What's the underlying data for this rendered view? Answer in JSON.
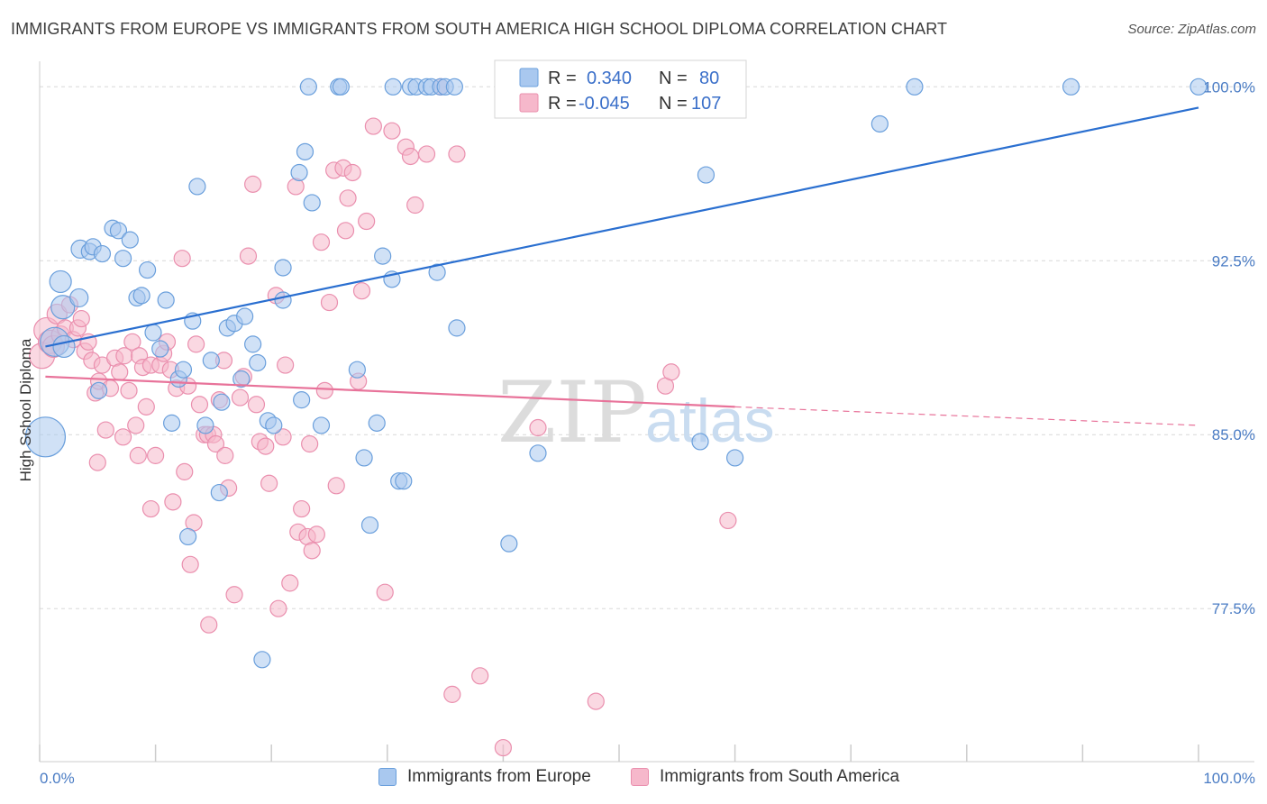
{
  "title": "IMMIGRANTS FROM EUROPE VS IMMIGRANTS FROM SOUTH AMERICA HIGH SCHOOL DIPLOMA CORRELATION CHART",
  "source": "Source: ZipAtlas.com",
  "watermark": {
    "zip": "ZIP",
    "atlas": "atlas"
  },
  "colors": {
    "blue_fill": "#a9c8ef",
    "blue_stroke": "#6a9fdc",
    "blue_line": "#2a6fd0",
    "pink_fill": "#f6b8cb",
    "pink_stroke": "#ea8fae",
    "pink_line": "#e8739a",
    "axis_text": "#4a7cc4",
    "grid": "#d8d8d8"
  },
  "legend": {
    "rows": [
      {
        "r_label": "R =",
        "r_value": "0.340",
        "n_label": "N =",
        "n_value": "80"
      },
      {
        "r_label": "R =",
        "r_value": "-0.045",
        "n_label": "N =",
        "n_value": "107"
      }
    ]
  },
  "chart_data": {
    "type": "scatter",
    "ylabel": "High School Diploma",
    "xlim": [
      0,
      100
    ],
    "ylim": [
      70.9,
      101.1
    ],
    "x_tick_labels": [
      "0.0%",
      "100.0%"
    ],
    "y_ticks": [
      77.5,
      85.0,
      92.5,
      100.0
    ],
    "y_tick_labels": [
      "77.5%",
      "85.0%",
      "92.5%",
      "100.0%"
    ],
    "grid": true,
    "series": [
      {
        "name": "Immigrants from Europe",
        "color": "blue",
        "trend": {
          "x": [
            0.5,
            100
          ],
          "y": [
            88.8,
            99.1
          ]
        },
        "points": [
          [
            0.5,
            84.9,
            22
          ],
          [
            1.3,
            89.0,
            16
          ],
          [
            1.8,
            91.6,
            12
          ],
          [
            2.0,
            90.5,
            13
          ],
          [
            2.1,
            88.8,
            12
          ],
          [
            3.5,
            93.0,
            10
          ],
          [
            3.4,
            90.9,
            10
          ],
          [
            4.3,
            92.9,
            9
          ],
          [
            4.6,
            93.1,
            9
          ],
          [
            5.4,
            92.8,
            9
          ],
          [
            5.1,
            86.9,
            9
          ],
          [
            6.3,
            93.9,
            9
          ],
          [
            6.8,
            93.8,
            9
          ],
          [
            7.2,
            92.6,
            9
          ],
          [
            7.8,
            93.4,
            9
          ],
          [
            8.4,
            90.9,
            9
          ],
          [
            8.8,
            91.0,
            9
          ],
          [
            9.3,
            92.1,
            9
          ],
          [
            9.8,
            89.4,
            9
          ],
          [
            10.4,
            88.7,
            9
          ],
          [
            10.9,
            90.8,
            9
          ],
          [
            11.4,
            85.5,
            9
          ],
          [
            12.0,
            87.4,
            9
          ],
          [
            12.4,
            87.8,
            9
          ],
          [
            12.8,
            80.6,
            9
          ],
          [
            13.2,
            89.9,
            9
          ],
          [
            13.6,
            95.7,
            9
          ],
          [
            14.3,
            85.4,
            9
          ],
          [
            14.8,
            88.2,
            9
          ],
          [
            15.5,
            82.5,
            9
          ],
          [
            15.7,
            86.4,
            9
          ],
          [
            16.2,
            89.6,
            9
          ],
          [
            16.8,
            89.8,
            9
          ],
          [
            17.4,
            87.4,
            9
          ],
          [
            17.7,
            90.1,
            9
          ],
          [
            18.4,
            88.9,
            9
          ],
          [
            18.8,
            88.1,
            9
          ],
          [
            19.2,
            75.3,
            9
          ],
          [
            19.7,
            85.6,
            9
          ],
          [
            20.2,
            85.4,
            9
          ],
          [
            21.0,
            92.2,
            9
          ],
          [
            21.0,
            90.8,
            9
          ],
          [
            22.4,
            96.3,
            9
          ],
          [
            22.6,
            86.5,
            9
          ],
          [
            22.9,
            97.2,
            9
          ],
          [
            23.5,
            95.0,
            9
          ],
          [
            23.2,
            100.0,
            9
          ],
          [
            24.3,
            85.4,
            9
          ],
          [
            25.8,
            100.0,
            9
          ],
          [
            26.0,
            100.0,
            9
          ],
          [
            27.4,
            87.8,
            9
          ],
          [
            28.0,
            84.0,
            9
          ],
          [
            28.5,
            81.1,
            9
          ],
          [
            29.1,
            85.5,
            9
          ],
          [
            29.6,
            92.7,
            9
          ],
          [
            30.4,
            91.7,
            9
          ],
          [
            30.5,
            100.0,
            9
          ],
          [
            31.0,
            83.0,
            9
          ],
          [
            31.4,
            83.0,
            9
          ],
          [
            32.0,
            100.0,
            9
          ],
          [
            32.5,
            100.0,
            9
          ],
          [
            33.4,
            100.0,
            9
          ],
          [
            33.8,
            100.0,
            9
          ],
          [
            34.3,
            92.0,
            9
          ],
          [
            34.6,
            100.0,
            9
          ],
          [
            35.0,
            100.0,
            9
          ],
          [
            35.8,
            100.0,
            9
          ],
          [
            36.0,
            89.6,
            9
          ],
          [
            40.0,
            100.0,
            9
          ],
          [
            40.5,
            80.3,
            9
          ],
          [
            43.0,
            84.2,
            9
          ],
          [
            47.0,
            100.0,
            9
          ],
          [
            57.0,
            84.7,
            9
          ],
          [
            57.5,
            96.2,
            9
          ],
          [
            60.0,
            84.0,
            9
          ],
          [
            72.5,
            98.4,
            9
          ],
          [
            75.5,
            100.0,
            9
          ],
          [
            89.0,
            100.0,
            9
          ],
          [
            100.0,
            100.0,
            9
          ]
        ]
      },
      {
        "name": "Immigrants from South America",
        "color": "pink",
        "trend": {
          "x": [
            0.5,
            60.0
          ],
          "y": [
            87.5,
            86.2
          ]
        },
        "trend_dashed": {
          "x": [
            60.0,
            100
          ],
          "y": [
            86.2,
            85.4
          ]
        },
        "points": [
          [
            0.2,
            88.4,
            14
          ],
          [
            0.6,
            89.5,
            14
          ],
          [
            0.9,
            89.0,
            13
          ],
          [
            1.2,
            88.8,
            12
          ],
          [
            1.5,
            90.2,
            11
          ],
          [
            1.8,
            89.3,
            10
          ],
          [
            2.2,
            89.6,
            9
          ],
          [
            2.6,
            90.6,
            9
          ],
          [
            2.9,
            89.1,
            9
          ],
          [
            3.3,
            89.6,
            9
          ],
          [
            3.6,
            90.0,
            9
          ],
          [
            3.9,
            88.6,
            9
          ],
          [
            4.2,
            89.0,
            9
          ],
          [
            4.5,
            88.2,
            9
          ],
          [
            4.8,
            86.8,
            9
          ],
          [
            5.1,
            87.3,
            9
          ],
          [
            5.4,
            88.0,
            9
          ],
          [
            5.7,
            85.2,
            9
          ],
          [
            5.0,
            83.8,
            9
          ],
          [
            6.1,
            87.0,
            9
          ],
          [
            6.5,
            88.3,
            9
          ],
          [
            6.9,
            87.7,
            9
          ],
          [
            7.3,
            88.4,
            9
          ],
          [
            7.7,
            86.9,
            9
          ],
          [
            7.2,
            84.9,
            9
          ],
          [
            8.0,
            89.0,
            9
          ],
          [
            8.3,
            85.4,
            9
          ],
          [
            8.6,
            88.4,
            9
          ],
          [
            8.9,
            87.9,
            9
          ],
          [
            8.5,
            84.1,
            9
          ],
          [
            9.2,
            86.2,
            9
          ],
          [
            9.6,
            81.8,
            9
          ],
          [
            9.6,
            88.0,
            9
          ],
          [
            10.0,
            84.1,
            9
          ],
          [
            10.4,
            88.0,
            9
          ],
          [
            10.7,
            88.5,
            9
          ],
          [
            11.0,
            89.0,
            9
          ],
          [
            11.3,
            87.8,
            9
          ],
          [
            11.5,
            82.1,
            9
          ],
          [
            11.8,
            87.0,
            9
          ],
          [
            12.3,
            92.6,
            9
          ],
          [
            12.5,
            83.4,
            9
          ],
          [
            12.8,
            87.1,
            9
          ],
          [
            13.0,
            79.4,
            9
          ],
          [
            13.3,
            81.2,
            9
          ],
          [
            13.5,
            88.9,
            9
          ],
          [
            13.8,
            86.3,
            9
          ],
          [
            14.2,
            85.0,
            9
          ],
          [
            14.6,
            76.8,
            9
          ],
          [
            14.5,
            85.0,
            9
          ],
          [
            15.0,
            85.0,
            9
          ],
          [
            15.2,
            84.6,
            9
          ],
          [
            15.5,
            86.5,
            9
          ],
          [
            15.9,
            88.2,
            9
          ],
          [
            16.0,
            84.1,
            9
          ],
          [
            16.3,
            82.7,
            9
          ],
          [
            16.8,
            78.1,
            9
          ],
          [
            17.3,
            86.6,
            9
          ],
          [
            17.6,
            87.5,
            9
          ],
          [
            18.0,
            92.7,
            9
          ],
          [
            18.4,
            95.8,
            9
          ],
          [
            18.7,
            86.3,
            9
          ],
          [
            19.0,
            84.7,
            9
          ],
          [
            19.5,
            84.5,
            9
          ],
          [
            19.8,
            82.9,
            9
          ],
          [
            20.4,
            91.0,
            9
          ],
          [
            20.6,
            77.5,
            9
          ],
          [
            21.0,
            84.9,
            9
          ],
          [
            21.2,
            88.0,
            9
          ],
          [
            21.6,
            78.6,
            9
          ],
          [
            22.1,
            95.7,
            9
          ],
          [
            22.3,
            80.8,
            9
          ],
          [
            22.6,
            81.8,
            9
          ],
          [
            23.1,
            80.6,
            9
          ],
          [
            23.3,
            84.6,
            9
          ],
          [
            23.5,
            80.0,
            9
          ],
          [
            23.9,
            80.7,
            9
          ],
          [
            24.3,
            93.3,
            9
          ],
          [
            24.6,
            86.9,
            9
          ],
          [
            25.0,
            90.7,
            9
          ],
          [
            25.4,
            96.4,
            9
          ],
          [
            25.6,
            82.8,
            9
          ],
          [
            26.2,
            96.5,
            9
          ],
          [
            26.6,
            95.2,
            9
          ],
          [
            26.4,
            93.8,
            9
          ],
          [
            27.0,
            96.3,
            9
          ],
          [
            27.5,
            87.3,
            9
          ],
          [
            27.8,
            91.2,
            9
          ],
          [
            28.2,
            94.2,
            9
          ],
          [
            28.8,
            98.3,
            9
          ],
          [
            29.8,
            78.2,
            9
          ],
          [
            30.4,
            98.1,
            9
          ],
          [
            31.6,
            97.4,
            9
          ],
          [
            32.0,
            97.0,
            9
          ],
          [
            32.4,
            94.9,
            9
          ],
          [
            33.4,
            97.1,
            9
          ],
          [
            34.6,
            100.0,
            9
          ],
          [
            35.6,
            73.8,
            9
          ],
          [
            36.0,
            97.1,
            9
          ],
          [
            38.0,
            74.6,
            9
          ],
          [
            40.0,
            71.5,
            9
          ],
          [
            43.0,
            85.3,
            9
          ],
          [
            48.0,
            73.5,
            9
          ],
          [
            54.0,
            87.1,
            9
          ],
          [
            54.5,
            87.7,
            9
          ],
          [
            59.4,
            81.3,
            9
          ]
        ]
      }
    ]
  }
}
